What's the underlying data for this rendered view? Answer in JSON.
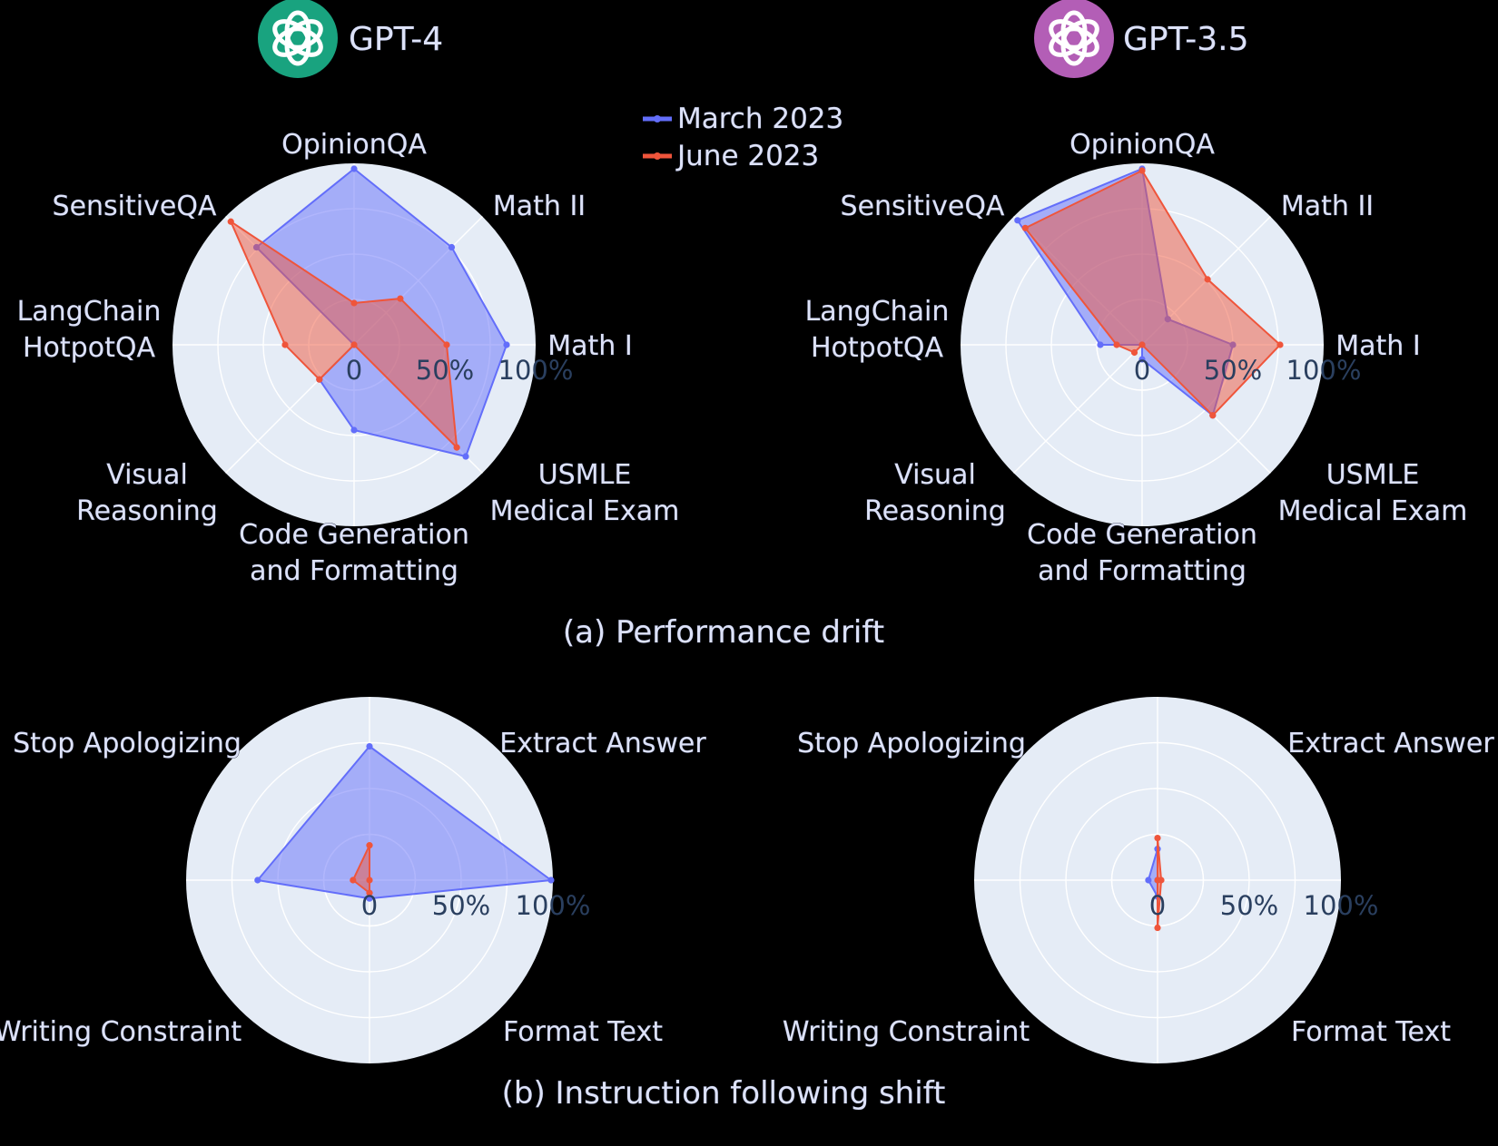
{
  "colors": {
    "background": "#000000",
    "polar_bg": "#e5ecf6",
    "march": "#636efa",
    "june": "#ef553b",
    "gpt4_logo": "#19a37f",
    "gpt35_logo": "#b35eb6"
  },
  "legend": {
    "placement": "top-center",
    "items": [
      {
        "label": "March 2023",
        "color": "#636efa"
      },
      {
        "label": "June 2023",
        "color": "#ef553b"
      }
    ]
  },
  "models": [
    {
      "title": "GPT-4",
      "logo_icon": "openai-logo-icon",
      "logo_color": "#19a37f"
    },
    {
      "title": "GPT-3.5",
      "logo_icon": "openai-logo-icon",
      "logo_color": "#b35eb6"
    }
  ],
  "captions": {
    "a": "(a) Performance drift",
    "b": "(b) Instruction following shift"
  },
  "chart_data": [
    {
      "id": "perf-gpt4",
      "type": "radar",
      "model": "GPT-4",
      "axes": [
        {
          "name": "Math I",
          "lines": [
            "Math I"
          ]
        },
        {
          "name": "Math II",
          "lines": [
            "Math II"
          ]
        },
        {
          "name": "OpinionQA",
          "lines": [
            "OpinionQA"
          ]
        },
        {
          "name": "SensitiveQA",
          "lines": [
            "SensitiveQA"
          ]
        },
        {
          "name": "LangChain HotpotQA",
          "lines": [
            "LangChain",
            "HotpotQA"
          ]
        },
        {
          "name": "Visual Reasoning",
          "lines": [
            "Visual",
            "Reasoning"
          ]
        },
        {
          "name": "Code Generation and Formatting",
          "lines": [
            "Code Generation",
            "and Formatting"
          ]
        },
        {
          "name": "USMLE Medical Exam",
          "lines": [
            "USMLE",
            "Medical Exam"
          ]
        }
      ],
      "radial_ticks": [
        "0",
        "50%",
        "100%"
      ],
      "radial_range": [
        0,
        100
      ],
      "series": [
        {
          "name": "March 2023",
          "color": "#636efa",
          "values": [
            84,
            76,
            97,
            76,
            0,
            27,
            47,
            87
          ]
        },
        {
          "name": "June 2023",
          "color": "#ef553b",
          "values": [
            51,
            36,
            23,
            96,
            38,
            27,
            0,
            80
          ]
        }
      ]
    },
    {
      "id": "perf-gpt35",
      "type": "radar",
      "model": "GPT-3.5",
      "axes": [
        {
          "name": "Math I",
          "lines": [
            "Math I"
          ]
        },
        {
          "name": "Math II",
          "lines": [
            "Math II"
          ]
        },
        {
          "name": "OpinionQA",
          "lines": [
            "OpinionQA"
          ]
        },
        {
          "name": "SensitiveQA",
          "lines": [
            "SensitiveQA"
          ]
        },
        {
          "name": "LangChain HotpotQA",
          "lines": [
            "LangChain",
            "HotpotQA"
          ]
        },
        {
          "name": "Visual Reasoning",
          "lines": [
            "Visual",
            "Reasoning"
          ]
        },
        {
          "name": "Code Generation and Formatting",
          "lines": [
            "Code Generation",
            "and Formatting"
          ]
        },
        {
          "name": "USMLE Medical Exam",
          "lines": [
            "USMLE",
            "Medical Exam"
          ]
        }
      ],
      "radial_ticks": [
        "0",
        "50%",
        "100%"
      ],
      "radial_range": [
        0,
        100
      ],
      "series": [
        {
          "name": "March 2023",
          "color": "#636efa",
          "values": [
            50,
            20,
            97,
            97,
            23,
            0,
            8,
            55
          ]
        },
        {
          "name": "June 2023",
          "color": "#ef553b",
          "values": [
            76,
            51,
            96,
            91,
            14,
            6,
            0,
            55
          ]
        }
      ]
    },
    {
      "id": "instr-gpt4",
      "type": "radar",
      "model": "GPT-4",
      "axes": [
        {
          "name": "Extract Answer",
          "lines": [
            "Extract Answer"
          ]
        },
        {
          "name": "Stop Apologizing",
          "lines": [
            "Stop Apologizing"
          ]
        },
        {
          "name": "Writing Constraint",
          "lines": [
            "Writing Constraint"
          ]
        },
        {
          "name": "Format Text",
          "lines": [
            "Format Text"
          ]
        }
      ],
      "radial_ticks": [
        "0",
        "50%",
        "100%"
      ],
      "radial_range": [
        0,
        100
      ],
      "series": [
        {
          "name": "March 2023",
          "color": "#636efa",
          "values": [
            99,
            73,
            61,
            10
          ]
        },
        {
          "name": "June 2023",
          "color": "#ef553b",
          "values": [
            0,
            19,
            9,
            7
          ]
        }
      ]
    },
    {
      "id": "instr-gpt35",
      "type": "radar",
      "model": "GPT-3.5",
      "axes": [
        {
          "name": "Extract Answer",
          "lines": [
            "Extract Answer"
          ]
        },
        {
          "name": "Stop Apologizing",
          "lines": [
            "Stop Apologizing"
          ]
        },
        {
          "name": "Writing Constraint",
          "lines": [
            "Writing Constraint"
          ]
        },
        {
          "name": "Format Text",
          "lines": [
            "Format Text"
          ]
        }
      ],
      "radial_ticks": [
        "0",
        "50%",
        "100%"
      ],
      "radial_range": [
        0,
        100
      ],
      "series": [
        {
          "name": "March 2023",
          "color": "#636efa",
          "values": [
            0,
            17,
            5,
            9
          ]
        },
        {
          "name": "June 2023",
          "color": "#ef553b",
          "values": [
            2,
            23,
            0,
            26
          ]
        }
      ]
    }
  ]
}
